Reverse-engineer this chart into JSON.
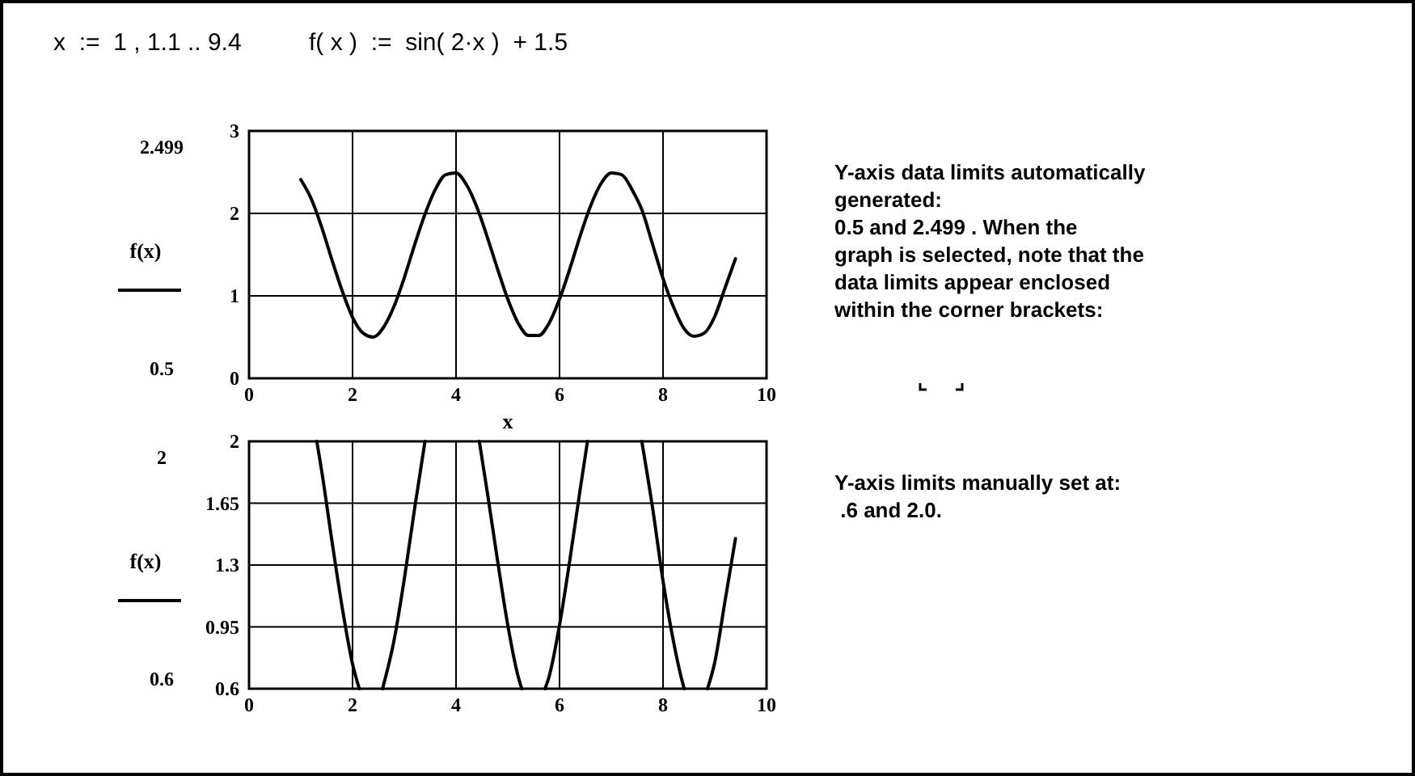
{
  "chart_data": [
    {
      "type": "line",
      "title": "x  :=  1 , 1.1 .. 9.4          f( x )  :=  sin( 2·x )  + 1.5",
      "xlabel": "x",
      "ylabel": "f(x)",
      "x": [
        1,
        1.2,
        1.4,
        1.6,
        1.8,
        2,
        2.2,
        2.4,
        2.6,
        2.8,
        3,
        3.2,
        3.4,
        3.6,
        3.8,
        4,
        4.2,
        4.4,
        4.6,
        4.8,
        5,
        5.2,
        5.4,
        5.6,
        5.8,
        6,
        6.2,
        6.4,
        6.6,
        6.8,
        7,
        7.2,
        7.4,
        7.6,
        7.8,
        8,
        8.2,
        8.4,
        8.6,
        8.8,
        9,
        9.2,
        9.4
      ],
      "values": [
        2.41,
        2.18,
        1.84,
        1.44,
        1.06,
        0.74,
        0.55,
        0.5,
        0.62,
        0.87,
        1.22,
        1.62,
        1.99,
        2.29,
        2.47,
        2.49,
        2.35,
        2.08,
        1.72,
        1.33,
        0.96,
        0.67,
        0.52,
        0.52,
        0.67,
        0.96,
        1.33,
        1.73,
        2.09,
        2.36,
        2.49,
        2.47,
        2.29,
        2.03,
        1.62,
        1.21,
        0.87,
        0.61,
        0.51,
        0.55,
        0.75,
        1.1,
        1.45
      ],
      "color": "#000000",
      "xlim": [
        0,
        10
      ],
      "ylim": [
        0,
        3
      ],
      "xticks": [
        0,
        2,
        4,
        6,
        8,
        10
      ],
      "yticks": [
        0,
        1,
        2,
        3
      ],
      "grid": true,
      "annotations": [
        "2.499",
        "0.5",
        "Y-axis data limits automatically\ngenerated:\n0.5 and 2.499 .  When the\ngraph is selected, note that the\ndata limits appear enclosed\nwithin the corner brackets:"
      ]
    },
    {
      "type": "line",
      "ylabel": "f(x)",
      "series": [
        {
          "color": "#000000",
          "x": [
            1.31,
            1.4,
            1.6,
            1.8,
            2,
            2.13
          ],
          "values": [
            2,
            1.84,
            1.44,
            1.06,
            0.74,
            0.6
          ]
        },
        {
          "color": "#000000",
          "x": [
            2.58,
            2.8,
            3,
            3.2,
            3.4
          ],
          "values": [
            0.6,
            0.87,
            1.22,
            1.62,
            2
          ]
        },
        {
          "color": "#000000",
          "x": [
            4.45,
            4.6,
            4.8,
            5,
            5.2,
            5.27
          ],
          "values": [
            2,
            1.72,
            1.33,
            0.96,
            0.67,
            0.6
          ]
        },
        {
          "color": "#000000",
          "x": [
            5.72,
            5.8,
            6,
            6.2,
            6.4,
            6.54
          ],
          "values": [
            0.6,
            0.67,
            0.96,
            1.33,
            1.73,
            2
          ]
        },
        {
          "color": "#000000",
          "x": [
            7.59,
            7.8,
            8,
            8.2,
            8.4,
            8.41
          ],
          "values": [
            2,
            1.62,
            1.21,
            0.87,
            0.61,
            0.6
          ]
        },
        {
          "color": "#000000",
          "x": [
            8.86,
            9,
            9.2,
            9.4
          ],
          "values": [
            0.6,
            0.75,
            1.1,
            1.45
          ]
        }
      ],
      "xlim": [
        0,
        10
      ],
      "ylim": [
        0.6,
        2
      ],
      "xticks": [
        0,
        2,
        4,
        6,
        8,
        10
      ],
      "yticks": [
        0.6,
        0.95,
        1.3,
        1.65,
        2
      ],
      "grid": true,
      "annotations": [
        "2",
        "0.6",
        "Y-axis limits manually set at:\n .6 and 2.0."
      ]
    }
  ]
}
